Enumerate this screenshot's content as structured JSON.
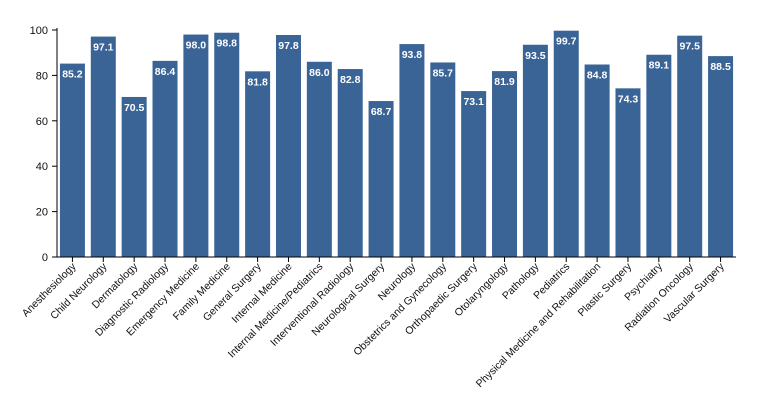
{
  "chart_data": {
    "type": "bar",
    "categories": [
      "Anesthesiology",
      "Child Neurology",
      "Dermatology",
      "Diagnostic Radiology",
      "Emergency Medicine",
      "Family Medicine",
      "General Surgery",
      "Internal Medicine",
      "Internal Medicine/Pediatrics",
      "Interventional Radiology",
      "Neurological Surgery",
      "Neurology",
      "Obstetrics and Gynecology",
      "Orthopaedic Surgery",
      "Otolaryngology",
      "Pathology",
      "Pediatrics",
      "Physical Medicine and Rehabilitation",
      "Plastic Surgery",
      "Psychiatry",
      "Radiation Oncology",
      "Vascular Surgery"
    ],
    "values": [
      85.2,
      97.1,
      70.5,
      86.4,
      98.0,
      98.8,
      81.8,
      97.8,
      86.0,
      82.8,
      68.7,
      93.8,
      85.7,
      73.1,
      81.9,
      93.5,
      99.7,
      84.8,
      74.3,
      89.1,
      97.5,
      88.5
    ],
    "data_labels": [
      "85.2",
      "97.1",
      "70.5",
      "86.4",
      "98.0",
      "98.8",
      "81.8",
      "97.8",
      "86.0",
      "82.8",
      "68.7",
      "93.8",
      "85.7",
      "73.1",
      "81.9",
      "93.5",
      "99.7",
      "84.8",
      "74.3",
      "89.1",
      "97.5",
      "88.5"
    ],
    "yticks": [
      "0",
      "20",
      "40",
      "60",
      "80",
      "100"
    ],
    "ylim": [
      0,
      100
    ],
    "title": "",
    "xlabel": "",
    "ylabel": "",
    "grid": false,
    "bar_color": "#3a6496",
    "label_color": "#ffffff"
  }
}
